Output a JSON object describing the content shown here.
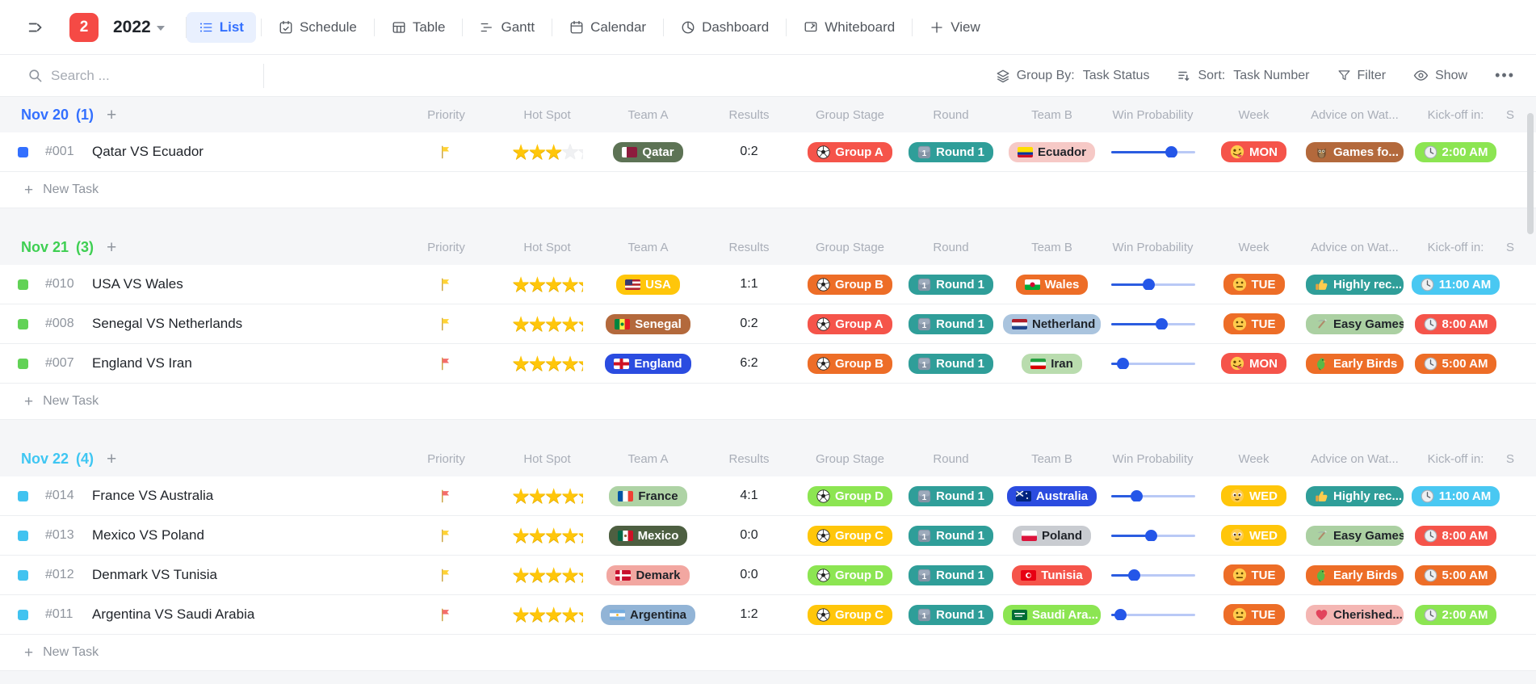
{
  "navbar": {
    "badge_count": "2",
    "base_title": "2022",
    "tabs": [
      {
        "label": "List",
        "icon": "list-icon",
        "active": true
      },
      {
        "label": "Schedule",
        "icon": "schedule-icon",
        "active": false
      },
      {
        "label": "Table",
        "icon": "table-icon",
        "active": false
      },
      {
        "label": "Gantt",
        "icon": "gantt-icon",
        "active": false
      },
      {
        "label": "Calendar",
        "icon": "calendar-icon",
        "active": false
      },
      {
        "label": "Dashboard",
        "icon": "dashboard-icon",
        "active": false
      },
      {
        "label": "Whiteboard",
        "icon": "whiteboard-icon",
        "active": false
      },
      {
        "label": "View",
        "icon": "plus-icon",
        "active": false
      }
    ]
  },
  "toolbar": {
    "search_placeholder": "Search ...",
    "group_by_label": "Group By:",
    "group_by_value": "Task Status",
    "sort_label": "Sort:",
    "sort_value": "Task Number",
    "filter_label": "Filter",
    "show_label": "Show",
    "more_label": "•••"
  },
  "columns": [
    "Priority",
    "Hot Spot",
    "Team A",
    "Results",
    "Group Stage",
    "Round",
    "Team B",
    "Win Probability",
    "Week",
    "Advice on Wat...",
    "Kick-off in:",
    "S"
  ],
  "new_task_label": "New Task",
  "accent_colors": {
    "active_tab": "#3370ff",
    "badge": "#f54a45",
    "slider_fill": "#2b5ce0",
    "slider_track": "#b9c9f6"
  },
  "groups": [
    {
      "title": "Nov 20",
      "count": "(1)",
      "title_color": "#3370ff",
      "bullet_color": "#3370ff",
      "tasks": [
        {
          "id": "#001",
          "title": "Qatar VS Ecuador",
          "priority_flag": "#ffd234",
          "stars": 3,
          "stars_empty": 1,
          "team_a": {
            "name": "Qatar",
            "bg": "#5d7355",
            "text": "#ffffff",
            "flag": "qatar"
          },
          "results": "0:2",
          "group_stage": {
            "label": "Group A",
            "bg": "#f5544a",
            "text": "#ffffff"
          },
          "round": {
            "label": "Round 1",
            "bg": "#2f9e99",
            "text": "#ffffff"
          },
          "team_b": {
            "name": "Ecuador",
            "bg": "#f6c9c6",
            "text": "#1f2329",
            "flag": "ecuador"
          },
          "win_probability": 72,
          "week": {
            "label": "MON",
            "bg": "#f5544a",
            "text": "#ffffff",
            "icon": "zany-face-icon"
          },
          "advice": {
            "label": "Games fo...",
            "bg": "#b3693c",
            "text": "#ffffff",
            "icon": "owl-icon"
          },
          "kickoff": {
            "label": "2:00 AM",
            "bg": "#8ce552",
            "text": "#ffffff",
            "icon": "clock-icon"
          }
        }
      ]
    },
    {
      "title": "Nov 21",
      "count": "(3)",
      "title_color": "#3ecf52",
      "bullet_color": "#62d256",
      "tasks": [
        {
          "id": "#010",
          "title": "USA VS Wales",
          "priority_flag": "#ffd234",
          "stars": 4,
          "stars_empty": 0,
          "team_a": {
            "name": "USA",
            "bg": "#ffc60a",
            "text": "#ffffff",
            "flag": "usa"
          },
          "results": "1:1",
          "group_stage": {
            "label": "Group B",
            "bg": "#ed6d27",
            "text": "#ffffff"
          },
          "round": {
            "label": "Round 1",
            "bg": "#2f9e99",
            "text": "#ffffff"
          },
          "team_b": {
            "name": "Wales",
            "bg": "#ed6d27",
            "text": "#ffffff",
            "flag": "wales"
          },
          "win_probability": 45,
          "week": {
            "label": "TUE",
            "bg": "#ed6d27",
            "text": "#ffffff",
            "icon": "neutral-face-icon"
          },
          "advice": {
            "label": "Highly rec...",
            "bg": "#2f9e99",
            "text": "#ffffff",
            "icon": "thumbs-up-icon"
          },
          "kickoff": {
            "label": "11:00 AM",
            "bg": "#49c8f2",
            "text": "#ffffff",
            "icon": "clock-icon"
          }
        },
        {
          "id": "#008",
          "title": "Senegal VS Netherlands",
          "priority_flag": "#ffd234",
          "stars": 4,
          "stars_empty": 0,
          "team_a": {
            "name": "Senegal",
            "bg": "#b3693c",
            "text": "#ffffff",
            "flag": "senegal"
          },
          "results": "0:2",
          "group_stage": {
            "label": "Group A",
            "bg": "#f5544a",
            "text": "#ffffff"
          },
          "round": {
            "label": "Round 1",
            "bg": "#2f9e99",
            "text": "#ffffff"
          },
          "team_b": {
            "name": "Netherland",
            "bg": "#aac4de",
            "text": "#1f2329",
            "flag": "netherlands"
          },
          "win_probability": 60,
          "week": {
            "label": "TUE",
            "bg": "#ed6d27",
            "text": "#ffffff",
            "icon": "neutral-face-icon"
          },
          "advice": {
            "label": "Easy Games",
            "bg": "#abd0a2",
            "text": "#1f2329",
            "icon": "pickaxe-icon"
          },
          "kickoff": {
            "label": "8:00 AM",
            "bg": "#f5544a",
            "text": "#ffffff",
            "icon": "clock-icon"
          }
        },
        {
          "id": "#007",
          "title": "England VS Iran",
          "priority_flag": "#f36d6a",
          "stars": 4,
          "stars_empty": 0,
          "team_a": {
            "name": "England",
            "bg": "#2b4ce0",
            "text": "#ffffff",
            "flag": "england"
          },
          "results": "6:2",
          "group_stage": {
            "label": "Group B",
            "bg": "#ed6d27",
            "text": "#ffffff"
          },
          "round": {
            "label": "Round 1",
            "bg": "#2f9e99",
            "text": "#ffffff"
          },
          "team_b": {
            "name": "Iran",
            "bg": "#b9dcae",
            "text": "#1f2329",
            "flag": "iran"
          },
          "win_probability": 14,
          "week": {
            "label": "MON",
            "bg": "#f5544a",
            "text": "#ffffff",
            "icon": "zany-face-icon"
          },
          "advice": {
            "label": "Early Birds",
            "bg": "#ed6d27",
            "text": "#ffffff",
            "icon": "parrot-icon"
          },
          "kickoff": {
            "label": "5:00 AM",
            "bg": "#ed6d27",
            "text": "#ffffff",
            "icon": "clock-icon"
          }
        }
      ]
    },
    {
      "title": "Nov 22",
      "count": "(4)",
      "title_color": "#3ec6f2",
      "bullet_color": "#41c3f0",
      "tasks": [
        {
          "id": "#014",
          "title": "France VS Australia",
          "priority_flag": "#f36d6a",
          "stars": 4,
          "stars_empty": 0,
          "team_a": {
            "name": "France",
            "bg": "#aed3a5",
            "text": "#1f2329",
            "flag": "france"
          },
          "results": "4:1",
          "group_stage": {
            "label": "Group D",
            "bg": "#8ce552",
            "text": "#ffffff"
          },
          "round": {
            "label": "Round 1",
            "bg": "#2f9e99",
            "text": "#ffffff"
          },
          "team_b": {
            "name": "Australia",
            "bg": "#2b4ce0",
            "text": "#ffffff",
            "flag": "australia"
          },
          "win_probability": 30,
          "week": {
            "label": "WED",
            "bg": "#ffc60a",
            "text": "#ffffff",
            "icon": "pleading-face-icon"
          },
          "advice": {
            "label": "Highly rec...",
            "bg": "#2f9e99",
            "text": "#ffffff",
            "icon": "thumbs-up-icon"
          },
          "kickoff": {
            "label": "11:00 AM",
            "bg": "#49c8f2",
            "text": "#ffffff",
            "icon": "clock-icon"
          }
        },
        {
          "id": "#013",
          "title": "Mexico VS Poland",
          "priority_flag": "#ffd234",
          "stars": 4,
          "stars_empty": 0,
          "team_a": {
            "name": "Mexico",
            "bg": "#4d5f41",
            "text": "#ffffff",
            "flag": "mexico"
          },
          "results": "0:0",
          "group_stage": {
            "label": "Group C",
            "bg": "#ffc60a",
            "text": "#ffffff"
          },
          "round": {
            "label": "Round 1",
            "bg": "#2f9e99",
            "text": "#ffffff"
          },
          "team_b": {
            "name": "Poland",
            "bg": "#c9ccd1",
            "text": "#1f2329",
            "flag": "poland"
          },
          "win_probability": 48,
          "week": {
            "label": "WED",
            "bg": "#ffc60a",
            "text": "#ffffff",
            "icon": "pleading-face-icon"
          },
          "advice": {
            "label": "Easy Games",
            "bg": "#abd0a2",
            "text": "#1f2329",
            "icon": "pickaxe-icon"
          },
          "kickoff": {
            "label": "8:00 AM",
            "bg": "#f5544a",
            "text": "#ffffff",
            "icon": "clock-icon"
          }
        },
        {
          "id": "#012",
          "title": "Denmark VS Tunisia",
          "priority_flag": "#ffd234",
          "stars": 4,
          "stars_empty": 0,
          "team_a": {
            "name": "Demark",
            "bg": "#f2a7a1",
            "text": "#1f2329",
            "flag": "denmark"
          },
          "results": "0:0",
          "group_stage": {
            "label": "Group D",
            "bg": "#8ce552",
            "text": "#ffffff"
          },
          "round": {
            "label": "Round 1",
            "bg": "#2f9e99",
            "text": "#ffffff"
          },
          "team_b": {
            "name": "Tunisia",
            "bg": "#f5544a",
            "text": "#ffffff",
            "flag": "tunisia"
          },
          "win_probability": 27,
          "week": {
            "label": "TUE",
            "bg": "#ed6d27",
            "text": "#ffffff",
            "icon": "neutral-face-icon"
          },
          "advice": {
            "label": "Early Birds",
            "bg": "#ed6d27",
            "text": "#ffffff",
            "icon": "parrot-icon"
          },
          "kickoff": {
            "label": "5:00 AM",
            "bg": "#ed6d27",
            "text": "#ffffff",
            "icon": "clock-icon"
          }
        },
        {
          "id": "#011",
          "title": "Argentina VS Saudi Arabia",
          "priority_flag": "#f36d6a",
          "stars": 4,
          "stars_empty": 0,
          "team_a": {
            "name": "Argentina",
            "bg": "#92b4d6",
            "text": "#1f2329",
            "flag": "argentina"
          },
          "results": "1:2",
          "group_stage": {
            "label": "Group C",
            "bg": "#ffc60a",
            "text": "#ffffff"
          },
          "round": {
            "label": "Round 1",
            "bg": "#2f9e99",
            "text": "#ffffff"
          },
          "team_b": {
            "name": "Saudi Ara...",
            "bg": "#8ce552",
            "text": "#ffffff",
            "flag": "saudi-arabia"
          },
          "win_probability": 11,
          "week": {
            "label": "TUE",
            "bg": "#ed6d27",
            "text": "#ffffff",
            "icon": "neutral-face-icon"
          },
          "advice": {
            "label": "Cherished...",
            "bg": "#f4b6b3",
            "text": "#1f2329",
            "icon": "heart-icon"
          },
          "kickoff": {
            "label": "2:00 AM",
            "bg": "#8ce552",
            "text": "#ffffff",
            "icon": "clock-icon"
          }
        }
      ]
    }
  ]
}
